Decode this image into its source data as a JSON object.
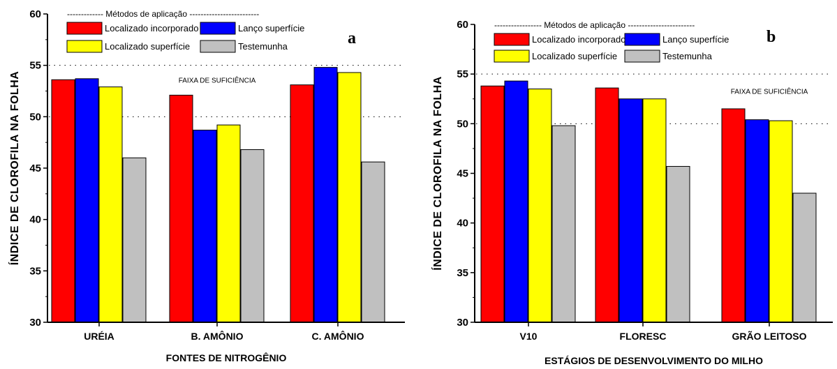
{
  "chart_data": [
    {
      "type": "bar",
      "panel_label": "a",
      "legend_title": "------------- Métodos de aplicação -------------------------",
      "xlabel": "FONTES DE NITROGÊNIO",
      "ylabel": "ÍNDICE DE CLOROFILA NA FOLHA",
      "ylim": [
        30,
        60
      ],
      "yticks": [
        30,
        35,
        40,
        45,
        50,
        55,
        60
      ],
      "categories": [
        "URÉIA",
        "B. AMÔNIO",
        "C. AMÔNIO"
      ],
      "series": [
        {
          "name": "Localizado incorporado",
          "color": "#ff0000",
          "values": [
            53.6,
            52.1,
            53.1
          ]
        },
        {
          "name": "Lanço superfície",
          "color": "#0000ff",
          "values": [
            53.7,
            48.7,
            54.8
          ]
        },
        {
          "name": "Localizado superfície",
          "color": "#ffff00",
          "values": [
            52.9,
            49.2,
            54.3
          ]
        },
        {
          "name": "Testemunha",
          "color": "#c0c0c0",
          "values": [
            46.0,
            46.8,
            45.6
          ]
        }
      ],
      "reference_lines": [
        55,
        50
      ],
      "annotation": {
        "text": "FAIXA DE SUFICIÊNCIA",
        "y": 53.3,
        "category_index": 1
      }
    },
    {
      "type": "bar",
      "panel_label": "b",
      "legend_title": "----------------- Métodos de aplicação ------------------------",
      "xlabel": "ESTÁGIOS DE DESENVOLVIMENTO DO MILHO",
      "ylabel": "ÍNDICE DE CLOROFILA NA FOLHA",
      "ylim": [
        30,
        60
      ],
      "yticks": [
        30,
        35,
        40,
        45,
        50,
        55,
        60
      ],
      "categories": [
        "V10",
        "FLORESC",
        "GRÃO LEITOSO"
      ],
      "series": [
        {
          "name": "Localizado incorporado",
          "color": "#ff0000",
          "values": [
            53.8,
            53.6,
            51.5
          ]
        },
        {
          "name": "Lanço superfície",
          "color": "#0000ff",
          "values": [
            54.3,
            52.5,
            50.4
          ]
        },
        {
          "name": "Localizado superfície",
          "color": "#ffff00",
          "values": [
            53.5,
            52.5,
            50.3
          ]
        },
        {
          "name": "Testemunha",
          "color": "#c0c0c0",
          "values": [
            49.8,
            45.7,
            43.0
          ]
        }
      ],
      "reference_lines": [
        55,
        50
      ],
      "annotation": {
        "text": "FAIXA DE SUFICIÊNCIA",
        "y": 53.0,
        "category_index": 2
      }
    }
  ]
}
